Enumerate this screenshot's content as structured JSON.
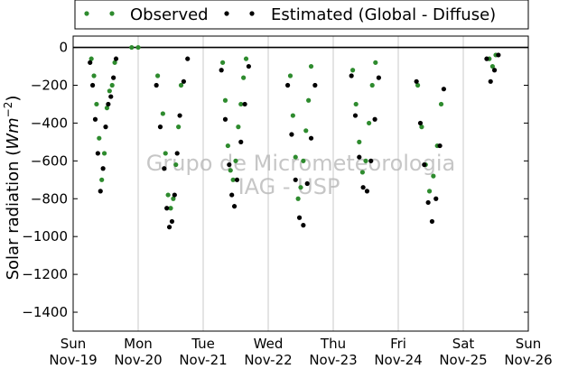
{
  "chart_data": {
    "type": "scatter",
    "ylabel_prefix": "Solar radiation (",
    "ylabel_math": "Wm",
    "ylabel_exp": "−2",
    "ylabel_suffix": ")",
    "ylim": [
      -1500,
      60
    ],
    "y_ticks": [
      0,
      -200,
      -400,
      -600,
      -800,
      -1000,
      -1200,
      -1400
    ],
    "xlim": [
      0,
      7
    ],
    "x_ticks": [
      {
        "pos": 0,
        "day": "Sun",
        "date": "Nov-19"
      },
      {
        "pos": 1,
        "day": "Mon",
        "date": "Nov-20"
      },
      {
        "pos": 2,
        "day": "Tue",
        "date": "Nov-21"
      },
      {
        "pos": 3,
        "day": "Wed",
        "date": "Nov-22"
      },
      {
        "pos": 4,
        "day": "Thu",
        "date": "Nov-23"
      },
      {
        "pos": 5,
        "day": "Fri",
        "date": "Nov-24"
      },
      {
        "pos": 6,
        "day": "Sat",
        "date": "Nov-25"
      },
      {
        "pos": 7,
        "day": "Sun",
        "date": "Nov-26"
      }
    ],
    "grid_x": true,
    "grid_y": false,
    "legend_placement": "top",
    "watermark": [
      "Grupo de Micrometeorologia",
      "IAG - USP"
    ],
    "series": [
      {
        "name": "Observed",
        "color": "#2e8b2e",
        "x": [
          0.28,
          0.32,
          0.36,
          0.4,
          0.44,
          0.48,
          0.52,
          0.56,
          0.6,
          0.64,
          0.9,
          1.0,
          1.3,
          1.38,
          1.42,
          1.46,
          1.5,
          1.54,
          1.58,
          1.62,
          1.66,
          2.3,
          2.34,
          2.38,
          2.42,
          2.46,
          2.5,
          2.54,
          2.58,
          2.62,
          2.66,
          3.34,
          3.38,
          3.42,
          3.46,
          3.5,
          3.54,
          3.58,
          3.62,
          3.66,
          4.3,
          4.35,
          4.4,
          4.45,
          4.5,
          4.55,
          4.6,
          4.65,
          5.3,
          5.36,
          5.42,
          5.48,
          5.54,
          5.6,
          5.66,
          6.4,
          6.45,
          6.5
        ],
        "y": [
          -60,
          -150,
          -300,
          -480,
          -700,
          -560,
          -320,
          -230,
          -200,
          -80,
          0,
          0,
          -150,
          -350,
          -560,
          -780,
          -850,
          -800,
          -620,
          -420,
          -200,
          -80,
          -280,
          -520,
          -650,
          -700,
          -600,
          -420,
          -300,
          -160,
          -60,
          -150,
          -360,
          -580,
          -800,
          -740,
          -600,
          -440,
          -280,
          -100,
          -120,
          -300,
          -500,
          -660,
          -600,
          -400,
          -200,
          -80,
          -200,
          -420,
          -620,
          -760,
          -680,
          -520,
          -300,
          -60,
          -100,
          -40
        ]
      },
      {
        "name": "Estimated (Global - Diffuse)",
        "color": "#000000",
        "x": [
          0.26,
          0.3,
          0.34,
          0.38,
          0.42,
          0.46,
          0.5,
          0.54,
          0.58,
          0.62,
          0.66,
          1.28,
          1.34,
          1.4,
          1.44,
          1.48,
          1.52,
          1.56,
          1.6,
          1.64,
          1.7,
          1.76,
          2.28,
          2.34,
          2.4,
          2.44,
          2.48,
          2.52,
          2.58,
          2.64,
          2.7,
          3.3,
          3.36,
          3.42,
          3.48,
          3.54,
          3.6,
          3.66,
          3.72,
          4.28,
          4.34,
          4.4,
          4.46,
          4.52,
          4.58,
          4.64,
          4.7,
          5.28,
          5.34,
          5.4,
          5.46,
          5.52,
          5.58,
          5.64,
          5.7,
          6.36,
          6.42,
          6.48,
          6.54
        ],
        "y": [
          -80,
          -200,
          -380,
          -560,
          -760,
          -640,
          -420,
          -300,
          -260,
          -160,
          -60,
          -200,
          -420,
          -640,
          -850,
          -950,
          -920,
          -780,
          -560,
          -360,
          -180,
          -60,
          -120,
          -380,
          -620,
          -780,
          -840,
          -700,
          -500,
          -300,
          -100,
          -200,
          -460,
          -700,
          -900,
          -940,
          -720,
          -480,
          -200,
          -150,
          -360,
          -580,
          -740,
          -760,
          -600,
          -380,
          -160,
          -180,
          -400,
          -620,
          -820,
          -920,
          -800,
          -520,
          -220,
          -60,
          -180,
          -120,
          -40
        ]
      }
    ]
  }
}
